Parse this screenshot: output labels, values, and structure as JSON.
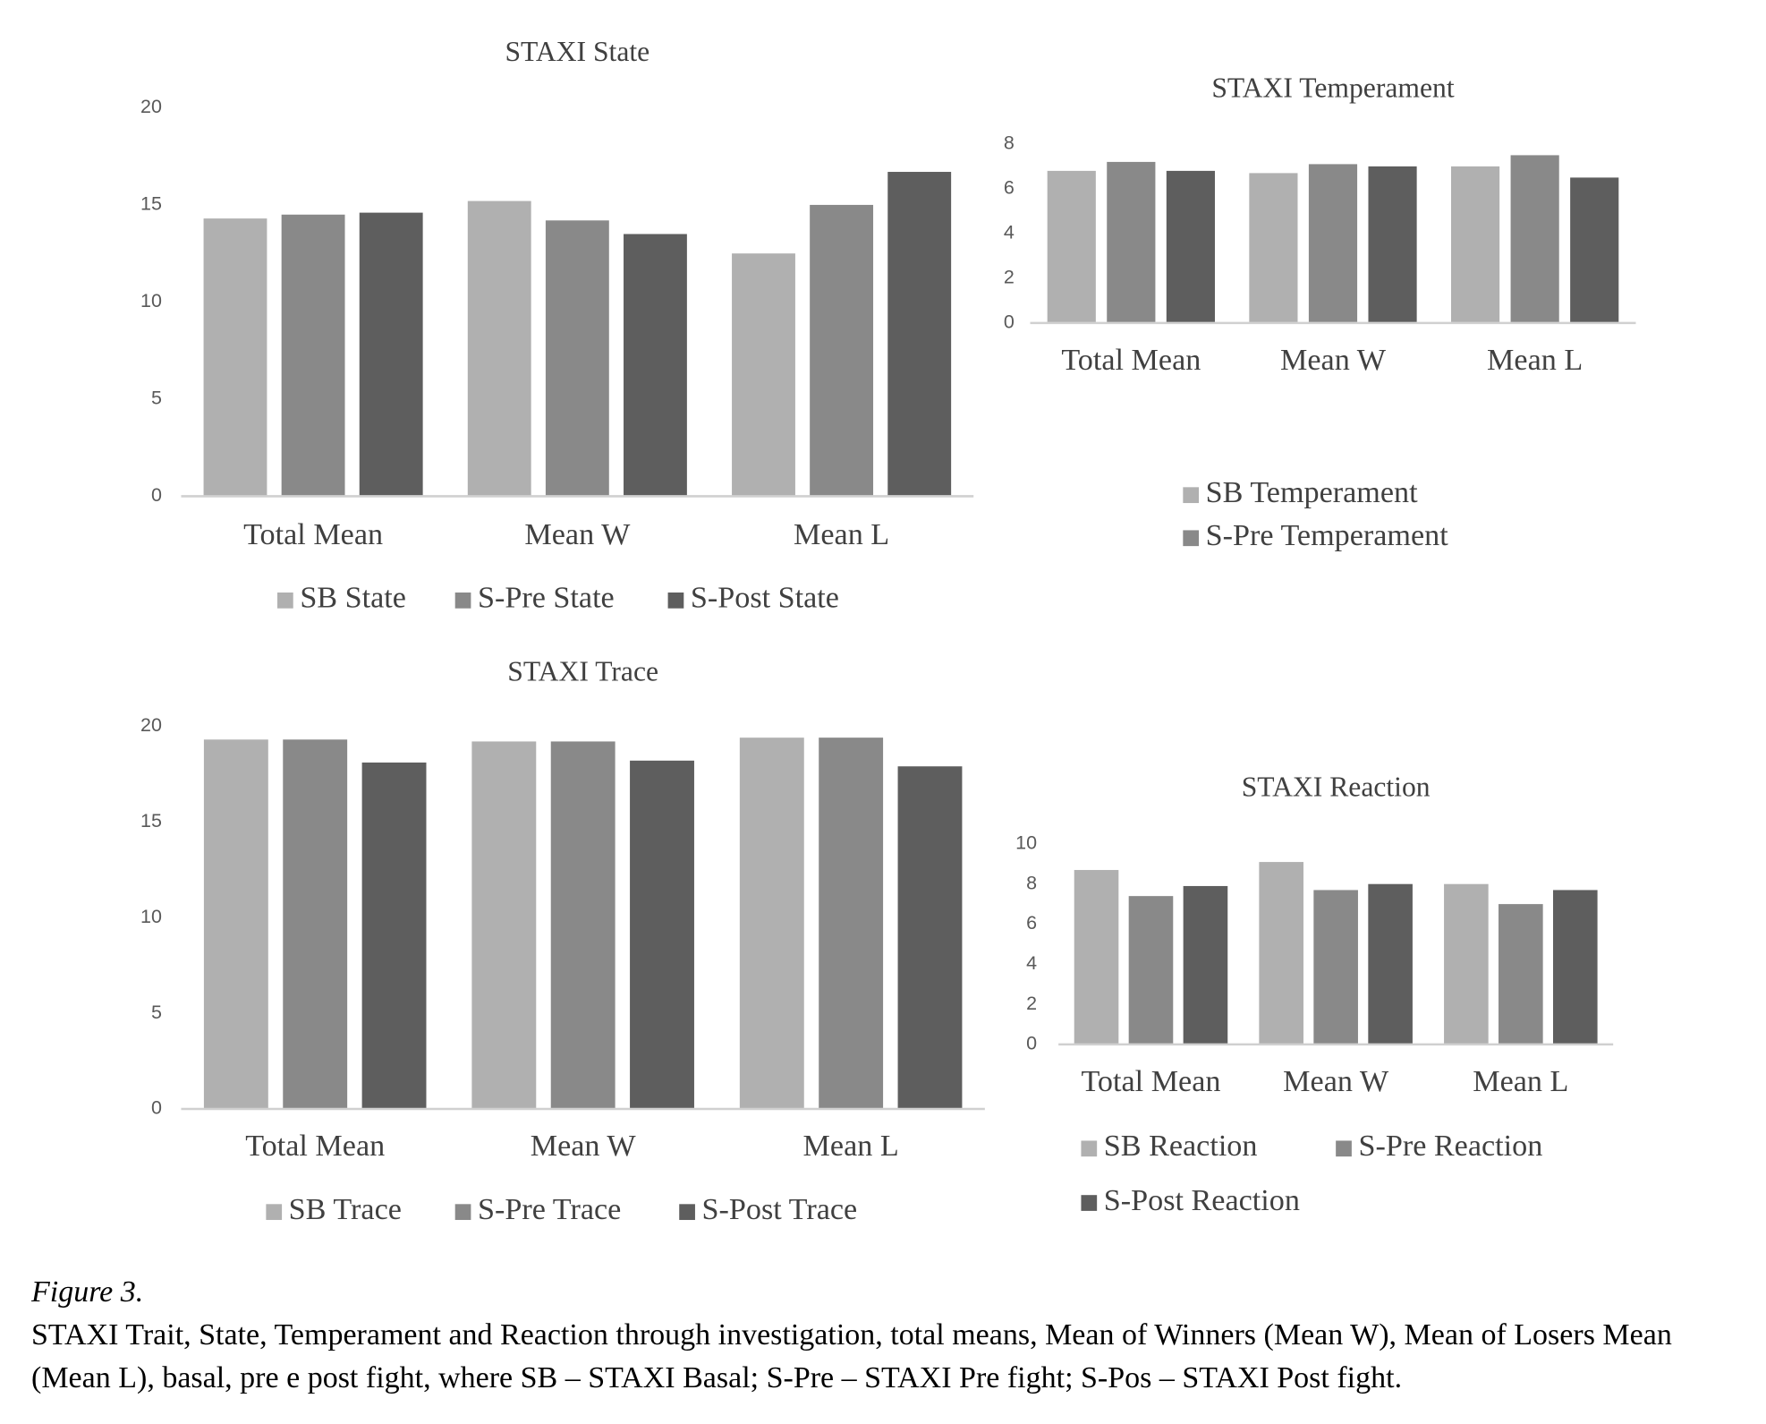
{
  "chart_data": [
    {
      "type": "bar",
      "title": "STAXI State",
      "categories": [
        "Total Mean",
        "Mean W",
        "Mean L"
      ],
      "series": [
        {
          "name": "SB State",
          "color": "#b0b0b0",
          "values": [
            14.3,
            15.2,
            12.5
          ]
        },
        {
          "name": "S-Pre State",
          "color": "#898989",
          "values": [
            14.5,
            14.2,
            15.0
          ]
        },
        {
          "name": "S-Post State",
          "color": "#5e5e5e",
          "values": [
            14.6,
            13.5,
            16.7
          ]
        }
      ],
      "ylim": [
        0,
        20
      ],
      "yticks": [
        0,
        5,
        10,
        15,
        20
      ]
    },
    {
      "type": "bar",
      "title": "STAXI Temperament",
      "categories": [
        "Total Mean",
        "Mean W",
        "Mean L"
      ],
      "series": [
        {
          "name": "SB Temperament",
          "color": "#b0b0b0",
          "values": [
            6.8,
            6.7,
            7.0
          ]
        },
        {
          "name": "S-Pre Temperament",
          "color": "#898989",
          "values": [
            7.2,
            7.1,
            7.5
          ]
        },
        {
          "color": "#5e5e5e",
          "values": [
            6.8,
            7.0,
            6.5
          ]
        }
      ],
      "ylim": [
        0,
        8
      ],
      "yticks": [
        0,
        2,
        4,
        6,
        8
      ]
    },
    {
      "type": "bar",
      "title": "STAXI Trace",
      "categories": [
        "Total Mean",
        "Mean W",
        "Mean L"
      ],
      "series": [
        {
          "name": "SB Trace",
          "color": "#b0b0b0",
          "values": [
            19.3,
            19.2,
            19.4
          ]
        },
        {
          "name": "S-Pre Trace",
          "color": "#898989",
          "values": [
            19.3,
            19.2,
            19.4
          ]
        },
        {
          "name": "S-Post Trace",
          "color": "#5e5e5e",
          "values": [
            18.1,
            18.2,
            17.9
          ]
        }
      ],
      "ylim": [
        0,
        20
      ],
      "yticks": [
        0,
        5,
        10,
        15,
        20
      ]
    },
    {
      "type": "bar",
      "title": "STAXI Reaction",
      "categories": [
        "Total Mean",
        "Mean W",
        "Mean L"
      ],
      "series": [
        {
          "name": "SB Reaction",
          "color": "#b0b0b0",
          "values": [
            8.7,
            9.1,
            8.0
          ]
        },
        {
          "name": "S-Pre Reaction",
          "color": "#898989",
          "values": [
            7.4,
            7.7,
            7.0
          ]
        },
        {
          "name": "S-Post Reaction",
          "color": "#5e5e5e",
          "values": [
            7.9,
            8.0,
            7.7
          ]
        }
      ],
      "ylim": [
        0,
        10
      ],
      "yticks": [
        0,
        2,
        4,
        6,
        8,
        10
      ]
    }
  ],
  "caption": {
    "label": "Figure 3.",
    "text": "STAXI Trait, State, Temperament and Reaction through investigation, total means, Mean of Winners (Mean W), Mean of Losers Mean (Mean L), basal, pre e post fight, where SB – STAXI Basal; S-Pre – STAXI Pre fight; S-Pos – STAXI Post fight."
  }
}
